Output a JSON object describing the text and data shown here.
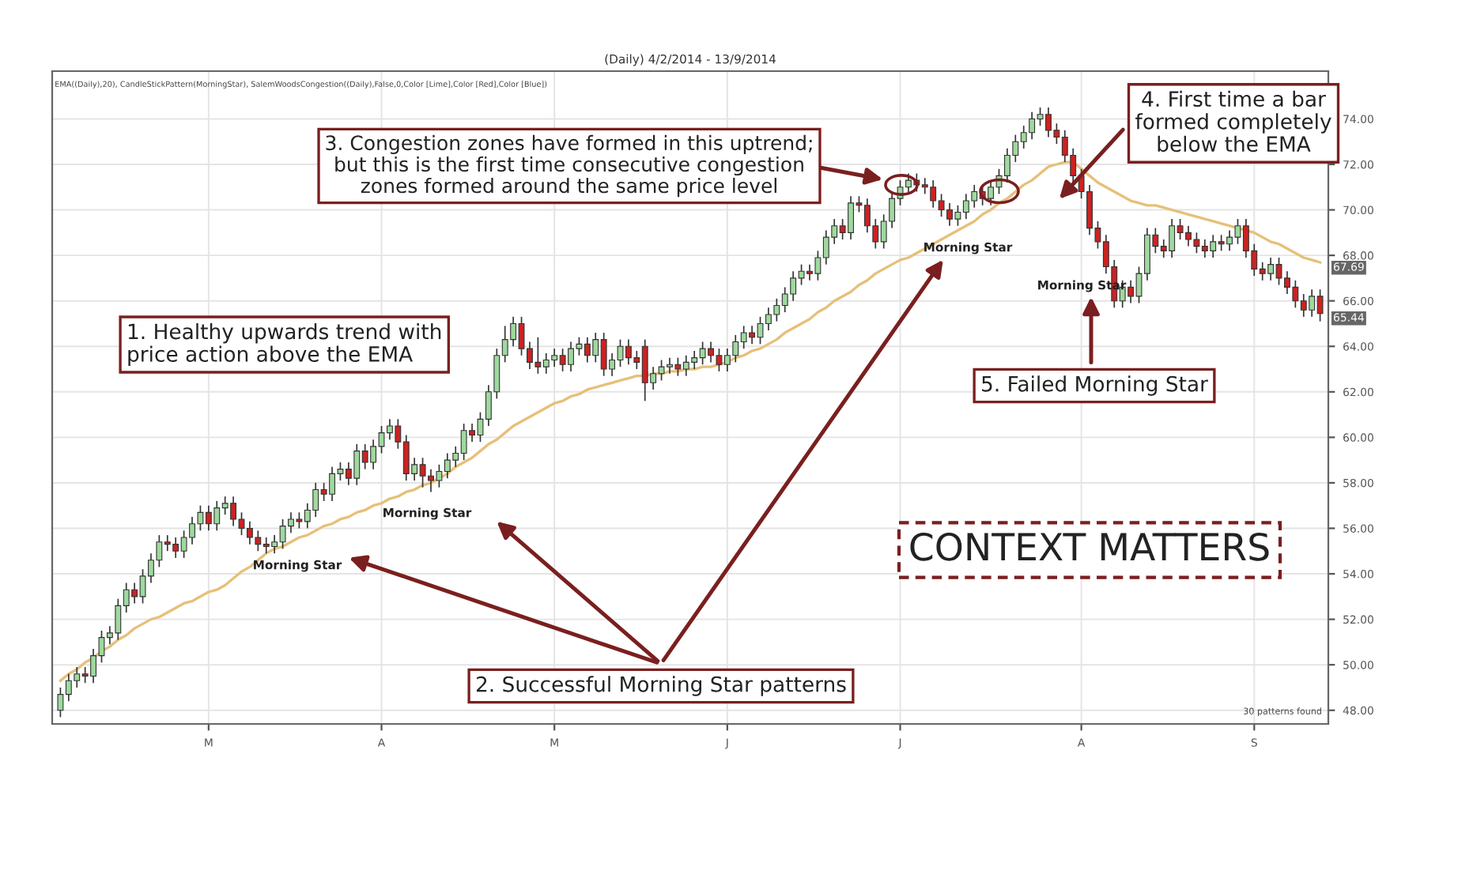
{
  "chart_data": {
    "type": "candlestick",
    "title": "(Daily) 4/2/2014 - 13/9/2014",
    "categories": [
      null,
      null,
      null,
      null,
      null,
      null,
      null,
      null,
      null,
      null,
      null,
      null,
      null,
      null,
      null,
      null,
      null,
      null,
      "M",
      null,
      null,
      null,
      null,
      null,
      null,
      null,
      null,
      null,
      null,
      null,
      null,
      null,
      null,
      null,
      null,
      null,
      null,
      null,
      null,
      "A",
      null,
      null,
      null,
      null,
      null,
      null,
      null,
      null,
      null,
      null,
      null,
      null,
      null,
      null,
      null,
      null,
      null,
      null,
      null,
      null,
      "M",
      null,
      null,
      null,
      null,
      null,
      null,
      null,
      null,
      null,
      null,
      null,
      null,
      null,
      null,
      null,
      null,
      null,
      null,
      null,
      null,
      "J",
      null,
      null,
      null,
      null,
      null,
      null,
      null,
      null,
      null,
      null,
      null,
      null,
      null,
      null,
      null,
      null,
      null,
      null,
      null,
      null,
      "J",
      null,
      null,
      null,
      null,
      null,
      null,
      null,
      null,
      null,
      null,
      null,
      null,
      null,
      null,
      null,
      null,
      null,
      null,
      null,
      null,
      null,
      "A",
      null,
      null,
      null,
      null,
      null,
      null,
      null,
      null,
      null,
      null,
      null,
      null,
      null,
      null,
      null,
      null,
      null,
      null,
      null,
      null,
      "S",
      null,
      null,
      null,
      null,
      null,
      null,
      null,
      null
    ],
    "ohlc": [
      [
        48.0,
        49.0,
        47.7,
        48.7
      ],
      [
        48.7,
        49.6,
        48.4,
        49.3
      ],
      [
        49.3,
        49.9,
        49.0,
        49.6
      ],
      [
        49.6,
        49.9,
        49.2,
        49.5
      ],
      [
        49.5,
        50.7,
        49.2,
        50.4
      ],
      [
        50.4,
        51.5,
        50.1,
        51.2
      ],
      [
        51.2,
        51.7,
        50.9,
        51.4
      ],
      [
        51.4,
        52.9,
        51.1,
        52.6
      ],
      [
        52.6,
        53.6,
        52.3,
        53.3
      ],
      [
        53.3,
        53.6,
        52.7,
        53.0
      ],
      [
        53.0,
        54.2,
        52.7,
        53.9
      ],
      [
        53.9,
        54.9,
        53.6,
        54.6
      ],
      [
        54.6,
        55.7,
        54.3,
        55.4
      ],
      [
        55.4,
        55.7,
        55.0,
        55.3
      ],
      [
        55.3,
        55.6,
        54.7,
        55.0
      ],
      [
        55.0,
        55.9,
        54.7,
        55.6
      ],
      [
        55.6,
        56.5,
        55.3,
        56.2
      ],
      [
        56.2,
        57.0,
        55.9,
        56.7
      ],
      [
        56.7,
        57.0,
        55.9,
        56.2
      ],
      [
        56.2,
        57.2,
        55.9,
        56.9
      ],
      [
        56.9,
        57.4,
        56.6,
        57.1
      ],
      [
        57.1,
        57.4,
        56.1,
        56.4
      ],
      [
        56.4,
        56.7,
        55.7,
        56.0
      ],
      [
        56.0,
        56.3,
        55.3,
        55.6
      ],
      [
        55.6,
        55.9,
        55.0,
        55.3
      ],
      [
        55.3,
        55.6,
        54.9,
        55.2
      ],
      [
        55.2,
        55.7,
        54.9,
        55.4
      ],
      [
        55.4,
        56.4,
        55.1,
        56.1
      ],
      [
        56.1,
        56.7,
        55.8,
        56.4
      ],
      [
        56.4,
        56.7,
        56.0,
        56.3
      ],
      [
        56.3,
        57.1,
        56.0,
        56.8
      ],
      [
        56.8,
        58.0,
        56.5,
        57.7
      ],
      [
        57.7,
        58.0,
        57.2,
        57.5
      ],
      [
        57.5,
        58.7,
        57.2,
        58.4
      ],
      [
        58.4,
        58.9,
        58.1,
        58.6
      ],
      [
        58.6,
        58.9,
        57.9,
        58.2
      ],
      [
        58.2,
        59.7,
        57.9,
        59.4
      ],
      [
        59.4,
        59.7,
        58.6,
        58.9
      ],
      [
        58.9,
        59.9,
        58.6,
        59.6
      ],
      [
        59.6,
        60.5,
        59.3,
        60.2
      ],
      [
        60.2,
        60.8,
        59.9,
        60.5
      ],
      [
        60.5,
        60.8,
        59.5,
        59.8
      ],
      [
        59.8,
        60.1,
        58.1,
        58.4
      ],
      [
        58.4,
        59.1,
        58.1,
        58.8
      ],
      [
        58.8,
        59.1,
        57.8,
        58.3
      ],
      [
        58.3,
        58.6,
        57.6,
        58.1
      ],
      [
        58.1,
        58.8,
        57.8,
        58.5
      ],
      [
        58.5,
        59.3,
        58.2,
        59.0
      ],
      [
        59.0,
        59.6,
        58.7,
        59.3
      ],
      [
        59.3,
        60.6,
        59.0,
        60.3
      ],
      [
        60.3,
        60.6,
        59.8,
        60.1
      ],
      [
        60.1,
        61.1,
        59.8,
        60.8
      ],
      [
        60.8,
        62.3,
        60.5,
        62.0
      ],
      [
        62.0,
        63.9,
        61.7,
        63.6
      ],
      [
        63.6,
        64.9,
        63.3,
        64.3
      ],
      [
        64.3,
        65.3,
        64.0,
        65.0
      ],
      [
        65.0,
        65.3,
        63.6,
        63.9
      ],
      [
        63.9,
        64.2,
        63.0,
        63.3
      ],
      [
        63.3,
        64.4,
        62.8,
        63.1
      ],
      [
        63.1,
        63.7,
        62.8,
        63.4
      ],
      [
        63.4,
        63.9,
        63.1,
        63.6
      ],
      [
        63.6,
        63.9,
        62.9,
        63.2
      ],
      [
        63.2,
        64.2,
        62.9,
        63.9
      ],
      [
        63.9,
        64.4,
        63.6,
        64.1
      ],
      [
        64.1,
        64.4,
        63.3,
        63.6
      ],
      [
        63.6,
        64.6,
        63.3,
        64.3
      ],
      [
        64.3,
        64.6,
        62.7,
        63.0
      ],
      [
        63.0,
        63.7,
        62.7,
        63.4
      ],
      [
        63.4,
        64.3,
        63.1,
        64.0
      ],
      [
        64.0,
        64.3,
        63.2,
        63.5
      ],
      [
        63.5,
        63.8,
        63.0,
        63.3
      ],
      [
        64.0,
        64.3,
        61.6,
        62.4
      ],
      [
        62.4,
        63.1,
        62.1,
        62.8
      ],
      [
        62.8,
        63.4,
        62.5,
        63.1
      ],
      [
        63.1,
        63.5,
        62.8,
        63.2
      ],
      [
        63.2,
        63.5,
        62.7,
        63.0
      ],
      [
        63.0,
        63.6,
        62.7,
        63.3
      ],
      [
        63.3,
        63.8,
        63.0,
        63.5
      ],
      [
        63.5,
        64.2,
        63.2,
        63.9
      ],
      [
        63.9,
        64.2,
        63.3,
        63.6
      ],
      [
        63.6,
        63.9,
        62.9,
        63.2
      ],
      [
        63.2,
        63.9,
        62.9,
        63.6
      ],
      [
        63.6,
        64.5,
        63.3,
        64.2
      ],
      [
        64.2,
        64.9,
        63.9,
        64.6
      ],
      [
        64.6,
        64.9,
        64.1,
        64.4
      ],
      [
        64.4,
        65.3,
        64.1,
        65.0
      ],
      [
        65.0,
        65.7,
        64.7,
        65.4
      ],
      [
        65.4,
        66.1,
        65.1,
        65.8
      ],
      [
        65.8,
        66.6,
        65.5,
        66.3
      ],
      [
        66.3,
        67.3,
        66.0,
        67.0
      ],
      [
        67.0,
        67.6,
        66.7,
        67.3
      ],
      [
        67.3,
        67.6,
        66.9,
        67.2
      ],
      [
        67.2,
        68.2,
        66.9,
        67.9
      ],
      [
        67.9,
        69.1,
        67.6,
        68.8
      ],
      [
        68.8,
        69.6,
        68.5,
        69.3
      ],
      [
        69.3,
        69.6,
        68.7,
        69.0
      ],
      [
        69.0,
        70.6,
        68.7,
        70.3
      ],
      [
        70.3,
        70.6,
        69.9,
        70.2
      ],
      [
        70.2,
        70.5,
        69.0,
        69.3
      ],
      [
        69.3,
        69.6,
        68.3,
        68.6
      ],
      [
        68.6,
        69.8,
        68.3,
        69.5
      ],
      [
        69.5,
        70.8,
        69.2,
        70.5
      ],
      [
        70.5,
        71.3,
        70.2,
        71.0
      ],
      [
        71.0,
        71.6,
        70.7,
        71.3
      ],
      [
        71.3,
        71.6,
        70.8,
        71.1
      ],
      [
        71.1,
        71.4,
        70.7,
        71.0
      ],
      [
        71.0,
        71.3,
        70.1,
        70.4
      ],
      [
        70.4,
        70.7,
        69.7,
        70.0
      ],
      [
        70.0,
        70.3,
        69.3,
        69.6
      ],
      [
        69.6,
        70.2,
        69.3,
        69.9
      ],
      [
        69.9,
        70.7,
        69.6,
        70.4
      ],
      [
        70.4,
        71.1,
        70.1,
        70.8
      ],
      [
        70.8,
        71.1,
        70.2,
        70.5
      ],
      [
        70.5,
        71.3,
        70.2,
        71.0
      ],
      [
        71.0,
        71.8,
        70.7,
        71.5
      ],
      [
        71.5,
        72.7,
        71.2,
        72.4
      ],
      [
        72.4,
        73.3,
        72.1,
        73.0
      ],
      [
        73.0,
        73.7,
        72.7,
        73.4
      ],
      [
        73.4,
        74.3,
        73.1,
        74.0
      ],
      [
        74.0,
        74.5,
        73.7,
        74.2
      ],
      [
        74.2,
        74.5,
        73.2,
        73.5
      ],
      [
        73.5,
        73.8,
        72.9,
        73.2
      ],
      [
        73.2,
        73.5,
        72.1,
        72.4
      ],
      [
        72.4,
        72.7,
        71.2,
        71.5
      ],
      [
        71.5,
        71.8,
        70.5,
        70.8
      ],
      [
        70.8,
        71.1,
        68.9,
        69.2
      ],
      [
        69.2,
        69.5,
        68.3,
        68.6
      ],
      [
        68.6,
        68.9,
        67.2,
        67.5
      ],
      [
        67.5,
        67.8,
        65.7,
        66.0
      ],
      [
        66.0,
        66.9,
        65.7,
        66.6
      ],
      [
        66.6,
        66.9,
        65.9,
        66.2
      ],
      [
        66.2,
        67.5,
        65.9,
        67.2
      ],
      [
        67.2,
        69.2,
        66.9,
        68.9
      ],
      [
        68.9,
        69.2,
        68.1,
        68.4
      ],
      [
        68.4,
        68.7,
        67.9,
        68.2
      ],
      [
        68.2,
        69.6,
        67.9,
        69.3
      ],
      [
        69.3,
        69.6,
        68.7,
        69.0
      ],
      [
        69.0,
        69.3,
        68.4,
        68.7
      ],
      [
        68.7,
        69.0,
        68.1,
        68.4
      ],
      [
        68.4,
        68.7,
        67.9,
        68.2
      ],
      [
        68.2,
        68.9,
        67.9,
        68.6
      ],
      [
        68.6,
        68.9,
        68.2,
        68.5
      ],
      [
        68.5,
        69.1,
        68.2,
        68.8
      ],
      [
        68.8,
        69.6,
        68.5,
        69.3
      ],
      [
        69.3,
        69.6,
        67.9,
        68.2
      ],
      [
        68.2,
        68.5,
        67.1,
        67.4
      ],
      [
        67.4,
        67.7,
        66.9,
        67.2
      ],
      [
        67.2,
        67.9,
        66.9,
        67.6
      ],
      [
        67.6,
        67.9,
        66.7,
        67.0
      ],
      [
        67.0,
        67.3,
        66.3,
        66.6
      ],
      [
        66.6,
        66.9,
        65.7,
        66.0
      ],
      [
        66.0,
        66.3,
        65.3,
        65.6
      ],
      [
        65.6,
        66.5,
        65.3,
        66.2
      ],
      [
        66.2,
        66.5,
        65.1,
        65.44
      ]
    ],
    "colors": [
      "#9fd99f",
      "#9fd99f",
      "#9fd99f",
      "#cc2222",
      "#9fd99f",
      "#9fd99f",
      "#9fd99f",
      "#9fd99f",
      "#9fd99f",
      "#cc2222",
      "#9fd99f",
      "#9fd99f",
      "#9fd99f",
      "#cc2222",
      "#cc2222",
      "#9fd99f",
      "#9fd99f",
      "#9fd99f",
      "#cc2222",
      "#9fd99f",
      "#9fd99f",
      "#cc2222",
      "#cc2222",
      "#cc2222",
      "#cc2222",
      "#cc2222",
      "#9fd99f",
      "#9fd99f",
      "#9fd99f",
      "#cc2222",
      "#9fd99f",
      "#9fd99f",
      "#cc2222",
      "#9fd99f",
      "#9fd99f",
      "#cc2222",
      "#9fd99f",
      "#cc2222",
      "#9fd99f",
      "#9fd99f",
      "#9fd99f",
      "#cc2222",
      "#cc2222",
      "#9fd99f",
      "#cc2222",
      "#cc2222",
      "#9fd99f",
      "#9fd99f",
      "#9fd99f",
      "#9fd99f",
      "#cc2222",
      "#9fd99f",
      "#9fd99f",
      "#9fd99f",
      "#9fd99f",
      "#9fd99f",
      "#cc2222",
      "#cc2222",
      "#cc2222",
      "#9fd99f",
      "#9fd99f",
      "#cc2222",
      "#9fd99f",
      "#9fd99f",
      "#cc2222",
      "#9fd99f",
      "#cc2222",
      "#9fd99f",
      "#9fd99f",
      "#cc2222",
      "#cc2222",
      "#cc2222",
      "#9fd99f",
      "#9fd99f",
      "#9fd99f",
      "#cc2222",
      "#9fd99f",
      "#9fd99f",
      "#9fd99f",
      "#cc2222",
      "#cc2222",
      "#9fd99f",
      "#9fd99f",
      "#9fd99f",
      "#cc2222",
      "#9fd99f",
      "#9fd99f",
      "#9fd99f",
      "#9fd99f",
      "#9fd99f",
      "#9fd99f",
      "#cc2222",
      "#9fd99f",
      "#9fd99f",
      "#9fd99f",
      "#cc2222",
      "#9fd99f",
      "#cc2222",
      "#cc2222",
      "#cc2222",
      "#9fd99f",
      "#9fd99f",
      "#9fd99f",
      "#9fd99f",
      "#cc2222",
      "#cc2222",
      "#cc2222",
      "#cc2222",
      "#cc2222",
      "#9fd99f",
      "#9fd99f",
      "#9fd99f",
      "#cc2222",
      "#9fd99f",
      "#9fd99f",
      "#9fd99f",
      "#9fd99f",
      "#9fd99f",
      "#9fd99f",
      "#9fd99f",
      "#cc2222",
      "#cc2222",
      "#cc2222",
      "#cc2222",
      "#cc2222",
      "#cc2222",
      "#cc2222",
      "#cc2222",
      "#cc2222",
      "#9fd99f",
      "#cc2222",
      "#9fd99f",
      "#9fd99f",
      "#cc2222",
      "#cc2222",
      "#9fd99f",
      "#cc2222",
      "#cc2222",
      "#cc2222",
      "#cc2222",
      "#9fd99f",
      "#cc2222",
      "#9fd99f",
      "#9fd99f",
      "#cc2222",
      "#cc2222",
      "#cc2222",
      "#9fd99f",
      "#cc2222",
      "#cc2222",
      "#cc2222",
      "#cc2222",
      "#9fd99f",
      "#cc2222"
    ],
    "series": [
      {
        "type": "line",
        "color": "#e6c079",
        "values": [
          49.3,
          49.6,
          49.8,
          50.1,
          50.3,
          50.6,
          50.8,
          51.1,
          51.3,
          51.6,
          51.8,
          52.0,
          52.1,
          52.3,
          52.5,
          52.7,
          52.8,
          53.0,
          53.2,
          53.3,
          53.5,
          53.8,
          54.1,
          54.3,
          54.6,
          54.9,
          55.1,
          55.2,
          55.4,
          55.6,
          55.7,
          55.9,
          56.1,
          56.2,
          56.4,
          56.5,
          56.7,
          56.8,
          57.0,
          57.1,
          57.3,
          57.4,
          57.6,
          57.7,
          57.9,
          58.0,
          58.2,
          58.4,
          58.7,
          58.9,
          59.1,
          59.4,
          59.7,
          59.9,
          60.2,
          60.5,
          60.7,
          60.9,
          61.1,
          61.3,
          61.5,
          61.6,
          61.8,
          61.9,
          62.1,
          62.2,
          62.3,
          62.4,
          62.5,
          62.6,
          62.7,
          62.7,
          62.8,
          62.8,
          62.9,
          62.9,
          63.0,
          63.0,
          63.1,
          63.1,
          63.2,
          63.3,
          63.5,
          63.6,
          63.8,
          63.9,
          64.1,
          64.3,
          64.6,
          64.8,
          65.0,
          65.2,
          65.5,
          65.7,
          66.0,
          66.2,
          66.4,
          66.7,
          66.9,
          67.2,
          67.4,
          67.6,
          67.8,
          67.9,
          68.1,
          68.3,
          68.5,
          68.7,
          68.9,
          69.1,
          69.3,
          69.5,
          69.8,
          70.0,
          70.3,
          70.5,
          70.8,
          71.1,
          71.3,
          71.6,
          71.9,
          72.0,
          72.1,
          72.1,
          71.8,
          71.5,
          71.2,
          71.0,
          70.8,
          70.6,
          70.4,
          70.3,
          70.2,
          70.2,
          70.1,
          70.0,
          69.9,
          69.8,
          69.7,
          69.6,
          69.5,
          69.4,
          69.3,
          69.2,
          69.1,
          69.0,
          68.8,
          68.6,
          68.5,
          68.3,
          68.1,
          67.9,
          67.8,
          67.69
        ]
      }
    ],
    "ylim": [
      47.4,
      76.1
    ],
    "yticks": [
      {
        "value": 48,
        "label": "48.00"
      },
      {
        "value": 50,
        "label": "50.00"
      },
      {
        "value": 52,
        "label": "52.00"
      },
      {
        "value": 54,
        "label": "54.00"
      },
      {
        "value": 56,
        "label": "56.00"
      },
      {
        "value": 58,
        "label": "58.00"
      },
      {
        "value": 60,
        "label": "60.00"
      },
      {
        "value": 62,
        "label": "62.00"
      },
      {
        "value": 64,
        "label": "64.00"
      },
      {
        "value": 66,
        "label": "66.00"
      },
      {
        "value": 68,
        "label": "68.00"
      },
      {
        "value": 70,
        "label": "70.00"
      },
      {
        "value": 72,
        "label": "72.00"
      },
      {
        "value": 74,
        "label": "74.00"
      }
    ],
    "grid": true,
    "annotations": [
      "1. Healthy upwards trend with\nprice action above the EMA",
      "2. Successful Morning Star patterns",
      "3. Congestion zones have formed in this uptrend;\nbut this is the first time consecutive congestion\nzones formed around the same price level",
      "4. First time a bar\nformed completely\nbelow the EMA",
      "5. Failed Morning Star",
      "CONTEXT MATTERS",
      "EMA((Daily),20), CandleStickPattern(MorningStar), SalemWoodsCongestion((Daily),False,0,Color [Lime],Color [Red],Color [Blue])",
      "30 patterns found",
      "Morning Star",
      "Morning Star",
      "Morning Star",
      "Morning Star",
      "67.69",
      "65.44"
    ]
  }
}
